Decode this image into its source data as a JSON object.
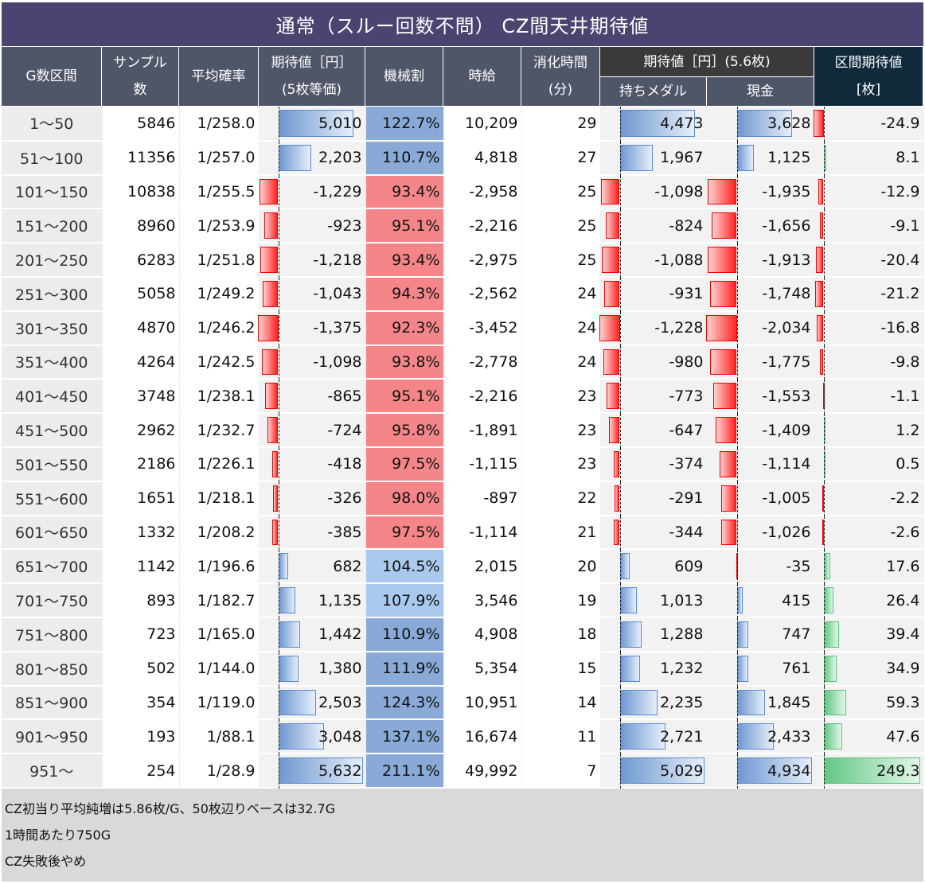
{
  "title": "通常（スルー回数不問） CZ間天井期待値",
  "headers": {
    "g": "G数区間",
    "sample": "サンプル\n数",
    "prob": "平均確率",
    "ev": "期待値［円］\n(5枚等価)",
    "kikai": "機械割",
    "jikyu": "時給",
    "time": "消化時間\n(分)",
    "ev56": "期待値［円］(5.6枚)",
    "medal": "持ちメダル",
    "cash": "現金",
    "interval": "区間期待値\n[枚]"
  },
  "colors": {
    "kikai_low": "#f4868a",
    "kikai_mid": "#a9c9ee",
    "kikai_high": "#89aad6"
  },
  "rows": [
    [
      "1〜50",
      "5846",
      "1/258.0",
      "5,010",
      "122.7%",
      "10,209",
      "29",
      "4,473",
      "3,628",
      "-24.9"
    ],
    [
      "51〜100",
      "11356",
      "1/257.0",
      "2,203",
      "110.7%",
      "4,818",
      "27",
      "1,967",
      "1,125",
      "8.1"
    ],
    [
      "101〜150",
      "10838",
      "1/255.5",
      "-1,229",
      "93.4%",
      "-2,958",
      "25",
      "-1,098",
      "-1,935",
      "-12.9"
    ],
    [
      "151〜200",
      "8960",
      "1/253.9",
      "-923",
      "95.1%",
      "-2,216",
      "25",
      "-824",
      "-1,656",
      "-9.1"
    ],
    [
      "201〜250",
      "6283",
      "1/251.8",
      "-1,218",
      "93.4%",
      "-2,975",
      "25",
      "-1,088",
      "-1,913",
      "-20.4"
    ],
    [
      "251〜300",
      "5058",
      "1/249.2",
      "-1,043",
      "94.3%",
      "-2,562",
      "24",
      "-931",
      "-1,748",
      "-21.2"
    ],
    [
      "301〜350",
      "4870",
      "1/246.2",
      "-1,375",
      "92.3%",
      "-3,452",
      "24",
      "-1,228",
      "-2,034",
      "-16.8"
    ],
    [
      "351〜400",
      "4264",
      "1/242.5",
      "-1,098",
      "93.8%",
      "-2,778",
      "24",
      "-980",
      "-1,775",
      "-9.8"
    ],
    [
      "401〜450",
      "3748",
      "1/238.1",
      "-865",
      "95.1%",
      "-2,216",
      "23",
      "-773",
      "-1,553",
      "-1.1"
    ],
    [
      "451〜500",
      "2962",
      "1/232.7",
      "-724",
      "95.8%",
      "-1,891",
      "23",
      "-647",
      "-1,409",
      "1.2"
    ],
    [
      "501〜550",
      "2186",
      "1/226.1",
      "-418",
      "97.5%",
      "-1,115",
      "23",
      "-374",
      "-1,114",
      "0.5"
    ],
    [
      "551〜600",
      "1651",
      "1/218.1",
      "-326",
      "98.0%",
      "-897",
      "22",
      "-291",
      "-1,005",
      "-2.2"
    ],
    [
      "601〜650",
      "1332",
      "1/208.2",
      "-385",
      "97.5%",
      "-1,114",
      "21",
      "-344",
      "-1,026",
      "-2.6"
    ],
    [
      "651〜700",
      "1142",
      "1/196.6",
      "682",
      "104.5%",
      "2,015",
      "20",
      "609",
      "-35",
      "17.6"
    ],
    [
      "701〜750",
      "893",
      "1/182.7",
      "1,135",
      "107.9%",
      "3,546",
      "19",
      "1,013",
      "415",
      "26.4"
    ],
    [
      "751〜800",
      "723",
      "1/165.0",
      "1,442",
      "110.9%",
      "4,908",
      "18",
      "1,288",
      "747",
      "39.4"
    ],
    [
      "801〜850",
      "502",
      "1/144.0",
      "1,380",
      "111.9%",
      "5,354",
      "15",
      "1,232",
      "761",
      "34.9"
    ],
    [
      "851〜900",
      "354",
      "1/119.0",
      "2,503",
      "124.3%",
      "10,951",
      "14",
      "2,235",
      "1,845",
      "59.3"
    ],
    [
      "901〜950",
      "193",
      "1/88.1",
      "3,048",
      "137.1%",
      "16,674",
      "11",
      "2,721",
      "2,433",
      "47.6"
    ],
    [
      "951〜",
      "254",
      "1/28.9",
      "5,632",
      "211.1%",
      "49,992",
      "7",
      "5,029",
      "4,934",
      "249.3"
    ]
  ],
  "notes": [
    "CZ初当り平均純増は5.86枚/G、50枚辺りベースは32.7G",
    "1時間あたり750G",
    "CZ失敗後やめ"
  ]
}
